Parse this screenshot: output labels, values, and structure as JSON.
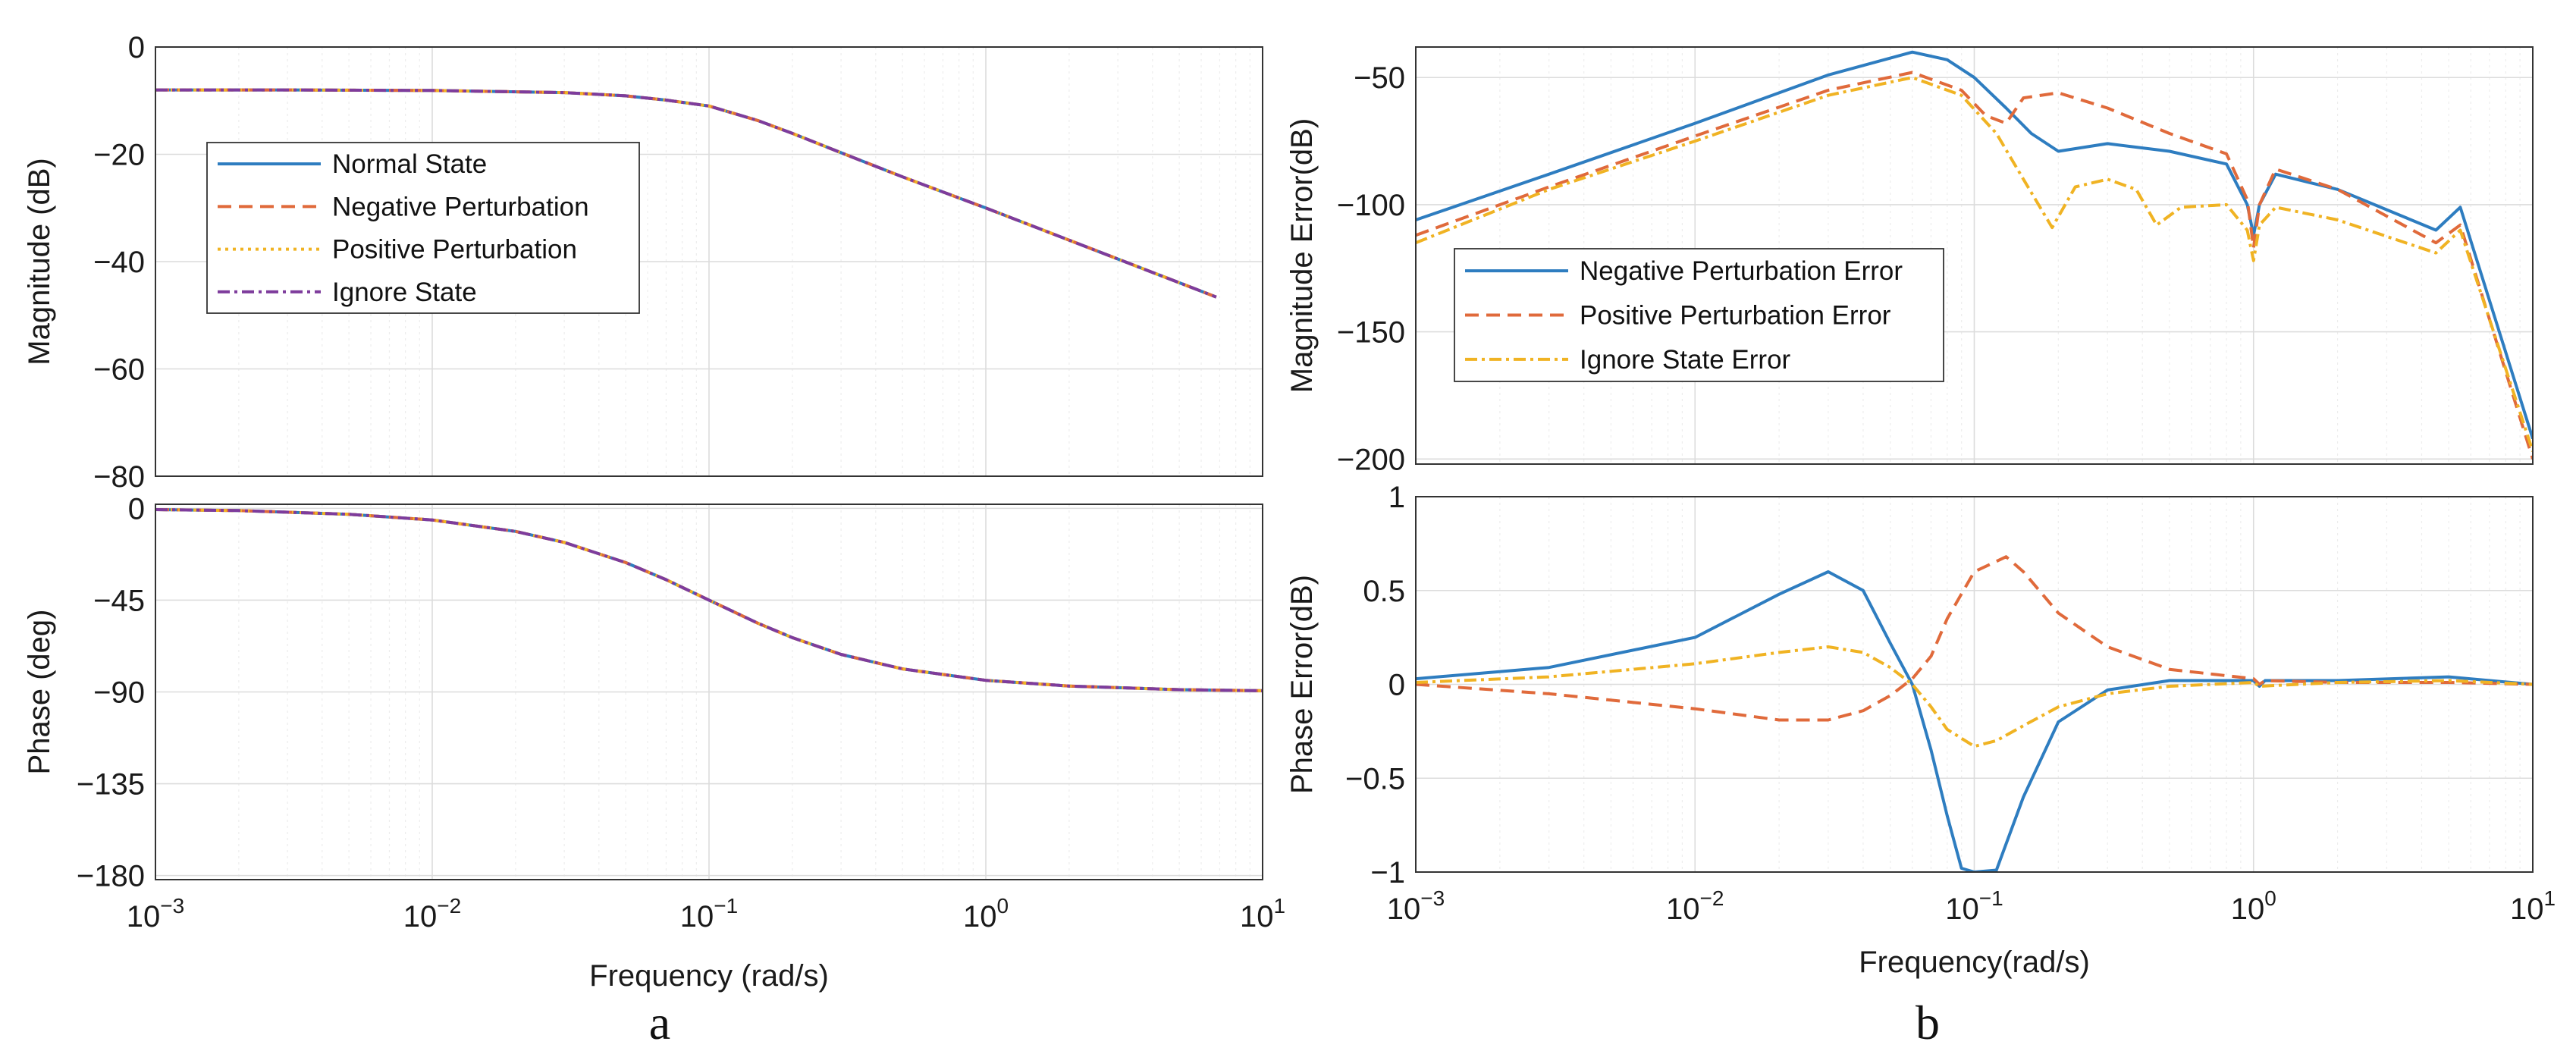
{
  "panels": {
    "a_label": "a",
    "b_label": "b"
  },
  "chart_data": [
    {
      "id": "a_mag",
      "type": "line",
      "xscale": "log",
      "xlim": [
        0.001,
        10
      ],
      "ylim": [
        -80,
        0
      ],
      "yticks": [
        0,
        -20,
        -40,
        -60,
        -80
      ],
      "ytick_labels": [
        "0",
        "−20",
        "−40",
        "−60",
        "−80"
      ],
      "ylabel": "Magnitude (dB)",
      "xlabel": "",
      "grid": true,
      "legend": {
        "position": "left",
        "entries": [
          "Normal State",
          "Negative Perturbation",
          "Positive Perturbation",
          "Ignore State"
        ]
      },
      "series": [
        {
          "name": "Normal State",
          "color": "#2e7dc0",
          "dash": "solid",
          "x": [
            0.001,
            0.003,
            0.01,
            0.03,
            0.05,
            0.07,
            0.1,
            0.15,
            0.2,
            0.3,
            0.5,
            1,
            2,
            4,
            6.8
          ],
          "y": [
            -8,
            -8,
            -8.1,
            -8.5,
            -9.1,
            -9.9,
            -11,
            -13.7,
            -16.1,
            -19.7,
            -24.2,
            -30,
            -36,
            -42,
            -46.6
          ]
        },
        {
          "name": "Negative Perturbation",
          "color": "#e06a3b",
          "dash": "18 10",
          "x": [
            0.001,
            0.003,
            0.01,
            0.03,
            0.05,
            0.07,
            0.1,
            0.15,
            0.2,
            0.3,
            0.5,
            1,
            2,
            4,
            6.8
          ],
          "y": [
            -8,
            -8,
            -8.1,
            -8.5,
            -9.1,
            -9.9,
            -11,
            -13.7,
            -16.1,
            -19.7,
            -24.2,
            -30,
            -36,
            -42,
            -46.6
          ]
        },
        {
          "name": "Positive Perturbation",
          "color": "#f0b323",
          "dash": "4 6",
          "x": [
            0.001,
            0.003,
            0.01,
            0.03,
            0.05,
            0.07,
            0.1,
            0.15,
            0.2,
            0.3,
            0.5,
            1,
            2,
            4,
            6.8
          ],
          "y": [
            -8,
            -8,
            -8.1,
            -8.5,
            -9.1,
            -9.9,
            -11,
            -13.7,
            -16.1,
            -19.7,
            -24.2,
            -30,
            -36,
            -42,
            -46.6
          ]
        },
        {
          "name": "Ignore State",
          "color": "#7e3c9c",
          "dash": "16 6 4 6",
          "x": [
            0.001,
            0.003,
            0.01,
            0.03,
            0.05,
            0.07,
            0.1,
            0.15,
            0.2,
            0.3,
            0.5,
            1,
            2,
            4,
            6.8
          ],
          "y": [
            -8,
            -8,
            -8.1,
            -8.5,
            -9.1,
            -9.9,
            -11,
            -13.7,
            -16.1,
            -19.7,
            -24.2,
            -30,
            -36,
            -42,
            -46.6
          ]
        }
      ]
    },
    {
      "id": "a_phase",
      "type": "line",
      "xscale": "log",
      "xlim": [
        0.001,
        10
      ],
      "ylim": [
        -182,
        2
      ],
      "yticks": [
        0,
        -45,
        -90,
        -135,
        -180
      ],
      "ytick_labels": [
        "0",
        "−45",
        "−90",
        "−135",
        "−180"
      ],
      "xticks": [
        0.001,
        0.01,
        0.1,
        1,
        10
      ],
      "xtick_exponents": [
        "−3",
        "−2",
        "−1",
        "0",
        "1"
      ],
      "xtick_base": "10",
      "ylabel": "Phase (deg)",
      "xlabel": "Frequency  (rad/s)",
      "grid": true,
      "series": [
        {
          "name": "Normal State",
          "color": "#2e7dc0",
          "dash": "solid",
          "x": [
            0.001,
            0.002,
            0.005,
            0.01,
            0.02,
            0.03,
            0.05,
            0.07,
            0.1,
            0.15,
            0.2,
            0.3,
            0.5,
            1,
            2,
            5,
            10
          ],
          "y": [
            -0.6,
            -1.1,
            -2.9,
            -5.7,
            -11.3,
            -16.7,
            -26.6,
            -35,
            -45,
            -56.3,
            -63.4,
            -71.6,
            -78.7,
            -84.3,
            -87.1,
            -88.9,
            -89.4
          ]
        },
        {
          "name": "Negative Perturbation",
          "color": "#e06a3b",
          "dash": "18 10",
          "x": [
            0.001,
            0.002,
            0.005,
            0.01,
            0.02,
            0.03,
            0.05,
            0.07,
            0.1,
            0.15,
            0.2,
            0.3,
            0.5,
            1,
            2,
            5,
            10
          ],
          "y": [
            -0.6,
            -1.1,
            -2.9,
            -5.7,
            -11.3,
            -16.7,
            -26.6,
            -35,
            -45,
            -56.3,
            -63.4,
            -71.6,
            -78.7,
            -84.3,
            -87.1,
            -88.9,
            -89.4
          ]
        },
        {
          "name": "Positive Perturbation",
          "color": "#f0b323",
          "dash": "4 6",
          "x": [
            0.001,
            0.002,
            0.005,
            0.01,
            0.02,
            0.03,
            0.05,
            0.07,
            0.1,
            0.15,
            0.2,
            0.3,
            0.5,
            1,
            2,
            5,
            10
          ],
          "y": [
            -0.6,
            -1.1,
            -2.9,
            -5.7,
            -11.3,
            -16.7,
            -26.6,
            -35,
            -45,
            -56.3,
            -63.4,
            -71.6,
            -78.7,
            -84.3,
            -87.1,
            -88.9,
            -89.4
          ]
        },
        {
          "name": "Ignore State",
          "color": "#7e3c9c",
          "dash": "16 6 4 6",
          "x": [
            0.001,
            0.002,
            0.005,
            0.01,
            0.02,
            0.03,
            0.05,
            0.07,
            0.1,
            0.15,
            0.2,
            0.3,
            0.5,
            1,
            2,
            5,
            10
          ],
          "y": [
            -0.6,
            -1.1,
            -2.9,
            -5.7,
            -11.3,
            -16.7,
            -26.6,
            -35,
            -45,
            -56.3,
            -63.4,
            -71.6,
            -78.7,
            -84.3,
            -87.1,
            -88.9,
            -89.4
          ]
        }
      ]
    },
    {
      "id": "b_mag",
      "type": "line",
      "xscale": "log",
      "xlim": [
        0.001,
        10
      ],
      "ylim": [
        -202,
        -38
      ],
      "yticks": [
        -50,
        -100,
        -150,
        -200
      ],
      "ytick_labels": [
        "−50",
        "−100",
        "−150",
        "−200"
      ],
      "ylabel": "Magnitude Error(dB)",
      "xlabel": "",
      "grid": true,
      "legend": {
        "position": "lower-left",
        "entries": [
          "Negative Perturbation Error",
          "Positive Perturbation Error",
          "Ignore State Error"
        ]
      },
      "series": [
        {
          "name": "Negative Perturbation Error",
          "color": "#2e7dc0",
          "dash": "solid",
          "x": [
            0.001,
            0.003,
            0.01,
            0.03,
            0.06,
            0.08,
            0.1,
            0.13,
            0.16,
            0.2,
            0.3,
            0.5,
            0.8,
            0.95,
            1.0,
            1.05,
            1.2,
            2,
            4.5,
            5.5,
            10
          ],
          "y": [
            -106,
            -88,
            -68,
            -49,
            -40,
            -43,
            -50,
            -62,
            -72,
            -79,
            -76,
            -79,
            -84,
            -100,
            -112,
            -100,
            -88,
            -94,
            -110,
            -101,
            -192
          ]
        },
        {
          "name": "Positive Perturbation Error",
          "color": "#e06a3b",
          "dash": "18 10",
          "x": [
            0.001,
            0.003,
            0.01,
            0.03,
            0.06,
            0.09,
            0.11,
            0.13,
            0.15,
            0.2,
            0.3,
            0.5,
            0.8,
            0.95,
            1.0,
            1.05,
            1.2,
            2,
            4.5,
            5.5,
            10
          ],
          "y": [
            -112,
            -93,
            -73,
            -55,
            -48,
            -55,
            -65,
            -68,
            -58,
            -56,
            -62,
            -72,
            -80,
            -98,
            -117,
            -100,
            -86,
            -94,
            -115,
            -108,
            -200
          ]
        },
        {
          "name": "Ignore State Error",
          "color": "#f0b323",
          "dash": "16 6 4 6",
          "x": [
            0.001,
            0.003,
            0.01,
            0.03,
            0.06,
            0.09,
            0.12,
            0.15,
            0.19,
            0.23,
            0.3,
            0.38,
            0.45,
            0.55,
            0.8,
            0.95,
            1.0,
            1.05,
            1.2,
            2,
            4.5,
            5.5,
            10
          ],
          "y": [
            -115,
            -94,
            -75,
            -57,
            -50,
            -57,
            -72,
            -90,
            -109,
            -93,
            -90,
            -94,
            -108,
            -101,
            -100,
            -110,
            -122,
            -108,
            -101,
            -106,
            -119,
            -110,
            -197
          ]
        }
      ]
    },
    {
      "id": "b_phase",
      "type": "line",
      "xscale": "log",
      "xlim": [
        0.001,
        10
      ],
      "ylim": [
        -1,
        1
      ],
      "yticks": [
        1,
        0.5,
        0,
        -0.5,
        -1
      ],
      "ytick_labels": [
        "1",
        "0.5",
        "0",
        "−0.5",
        "−1"
      ],
      "xticks": [
        0.001,
        0.01,
        0.1,
        1,
        10
      ],
      "xtick_exponents": [
        "−3",
        "−2",
        "−1",
        "0",
        "1"
      ],
      "xtick_base": "10",
      "ylabel": "Phase Error(dB)",
      "xlabel": "Frequency(rad/s)",
      "grid": true,
      "series": [
        {
          "name": "Negative Perturbation Error",
          "color": "#2e7dc0",
          "dash": "solid",
          "x": [
            0.001,
            0.003,
            0.01,
            0.02,
            0.03,
            0.04,
            0.05,
            0.06,
            0.07,
            0.08,
            0.09,
            0.1,
            0.12,
            0.15,
            0.2,
            0.3,
            0.5,
            1,
            1.05,
            1.1,
            2,
            5,
            10
          ],
          "y": [
            0.03,
            0.09,
            0.25,
            0.48,
            0.6,
            0.5,
            0.22,
            0.0,
            -0.35,
            -0.7,
            -0.98,
            -1.0,
            -0.99,
            -0.6,
            -0.2,
            -0.03,
            0.02,
            0.02,
            -0.01,
            0.02,
            0.02,
            0.04,
            0.0
          ]
        },
        {
          "name": "Positive Perturbation Error",
          "color": "#e06a3b",
          "dash": "18 10",
          "x": [
            0.001,
            0.003,
            0.01,
            0.02,
            0.03,
            0.04,
            0.05,
            0.06,
            0.07,
            0.08,
            0.1,
            0.13,
            0.15,
            0.2,
            0.3,
            0.5,
            1,
            1.05,
            1.1,
            2,
            5,
            10
          ],
          "y": [
            0.0,
            -0.05,
            -0.13,
            -0.19,
            -0.19,
            -0.14,
            -0.06,
            0.03,
            0.15,
            0.35,
            0.6,
            0.68,
            0.6,
            0.38,
            0.2,
            0.08,
            0.03,
            0.0,
            0.02,
            0.01,
            0.01,
            0.0
          ]
        },
        {
          "name": "Ignore State Error",
          "color": "#f0b323",
          "dash": "16 6 4 6",
          "x": [
            0.001,
            0.003,
            0.01,
            0.02,
            0.03,
            0.04,
            0.05,
            0.06,
            0.07,
            0.08,
            0.1,
            0.12,
            0.15,
            0.2,
            0.3,
            0.5,
            1,
            1.05,
            2,
            5,
            10
          ],
          "y": [
            0.01,
            0.04,
            0.11,
            0.17,
            0.2,
            0.17,
            0.09,
            0.0,
            -0.12,
            -0.24,
            -0.33,
            -0.3,
            -0.22,
            -0.12,
            -0.05,
            -0.01,
            0.01,
            -0.01,
            0.01,
            0.02,
            0.0
          ]
        }
      ]
    }
  ]
}
